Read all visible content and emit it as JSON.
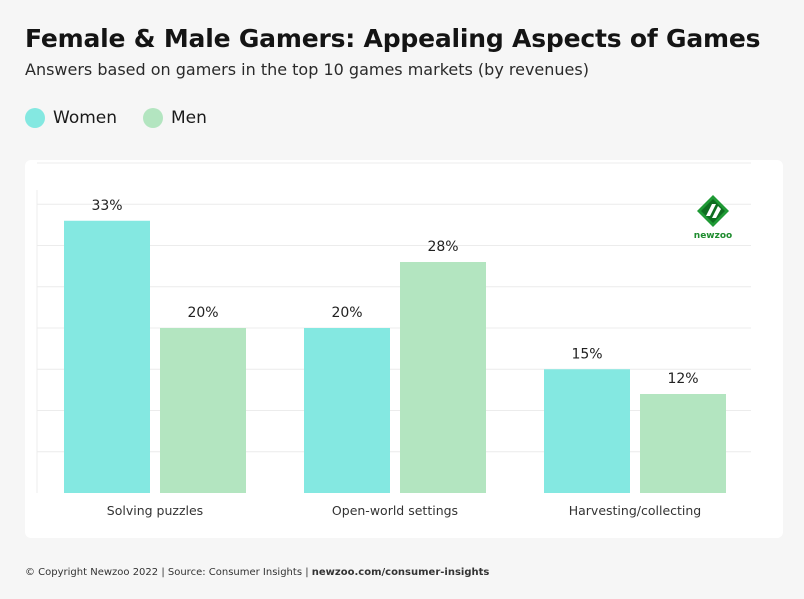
{
  "title": "Female & Male Gamers: Appealing Aspects of Games",
  "subtitle": "Answers based on gamers in the top 10 games markets (by revenues)",
  "legend": [
    {
      "label": "Women",
      "color": "#84e8e1"
    },
    {
      "label": "Men",
      "color": "#b3e5c0"
    }
  ],
  "logo": {
    "text": "newzoo",
    "icon": "newzoo-logo-icon"
  },
  "footer": {
    "text": "© Copyright Newzoo 2022 | Source: Consumer Insights | ",
    "link": "newzoo.com/consumer-insights"
  },
  "chart_data": {
    "type": "bar",
    "categories": [
      "Solving puzzles",
      "Open-world settings",
      "Harvesting/collecting"
    ],
    "series": [
      {
        "name": "Women",
        "values": [
          33,
          20,
          15
        ],
        "color": "#84e8e1"
      },
      {
        "name": "Men",
        "values": [
          20,
          28,
          12
        ],
        "color": "#b3e5c0"
      }
    ],
    "value_suffix": "%",
    "ylim": [
      0,
      40
    ],
    "grid": true
  }
}
